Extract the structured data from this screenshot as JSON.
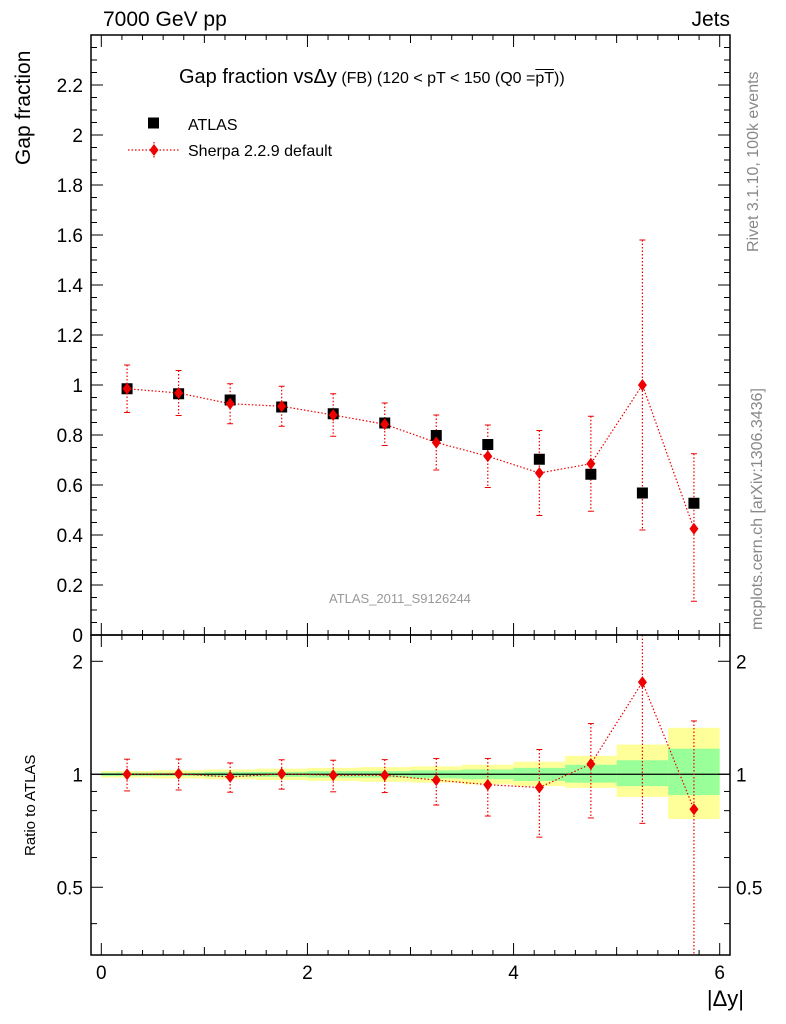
{
  "header": {
    "left": "7000 GeV pp",
    "right": "Jets"
  },
  "side_labels": {
    "rivet": "Rivet 3.1.10,  100k events",
    "mcplots": "mcplots.cern.ch [arXiv:1306.3436]"
  },
  "watermark": "ATLAS_2011_S9126244",
  "colors": {
    "data": "#000000",
    "mc": "#ee0000",
    "band_inner": "#99ff99",
    "band_outer": "#ffff99",
    "watermark": "#999999"
  },
  "chart_data": [
    {
      "type": "scatter",
      "title_main": "Gap fraction vs",
      "title_delta": "Δy",
      "title_rest": " (FB) (120 < pT < 150 (Q0 =",
      "title_over": "pT",
      "title_end": "))",
      "ylabel": "Gap fraction",
      "xlim": [
        -0.1,
        6.1
      ],
      "ylim": [
        0,
        2.4
      ],
      "yticks": [
        0,
        0.2,
        0.4,
        0.6,
        0.8,
        1,
        1.2,
        1.4,
        1.6,
        1.8,
        2,
        2.2
      ],
      "ytick_labels": [
        "0",
        "0.2",
        "0.4",
        "0.6",
        "0.8",
        "1",
        "1.2",
        "1.4",
        "1.6",
        "1.8",
        "2",
        "2.2"
      ],
      "legend_position": "top-left",
      "x": [
        0.25,
        0.75,
        1.25,
        1.75,
        2.25,
        2.75,
        3.25,
        3.75,
        4.25,
        4.75,
        5.25,
        5.75
      ],
      "x_bin_halfwidth": 0.25,
      "series": [
        {
          "name": "ATLAS",
          "marker": "square",
          "values": [
            0.985,
            0.965,
            0.94,
            0.912,
            0.885,
            0.848,
            0.798,
            0.762,
            0.703,
            0.643,
            0.568,
            0.527
          ]
        },
        {
          "name": "Sherpa 2.2.9 default",
          "marker": "diamond",
          "line": "dotted",
          "values": [
            0.985,
            0.968,
            0.925,
            0.915,
            0.88,
            0.843,
            0.77,
            0.715,
            0.648,
            0.685,
            1.0,
            0.425
          ],
          "err_up": [
            0.095,
            0.09,
            0.08,
            0.08,
            0.085,
            0.085,
            0.11,
            0.125,
            0.17,
            0.19,
            0.58,
            0.3
          ],
          "err_down": [
            0.095,
            0.09,
            0.08,
            0.08,
            0.085,
            0.085,
            0.11,
            0.125,
            0.17,
            0.19,
            0.58,
            0.29
          ]
        }
      ]
    },
    {
      "type": "scatter",
      "ylabel": "Ratio to ATLAS",
      "xlabel": "|Δy|",
      "xlim": [
        -0.1,
        6.1
      ],
      "ylim": [
        0.33,
        2.35
      ],
      "ylog": true,
      "yticks": [
        0.5,
        1,
        2
      ],
      "ytick_labels": [
        "0.5",
        "1",
        "2"
      ],
      "xticks": [
        0,
        2,
        4,
        6
      ],
      "xtick_labels": [
        "0",
        "2",
        "4",
        "6"
      ],
      "x": [
        0.25,
        0.75,
        1.25,
        1.75,
        2.25,
        2.75,
        3.25,
        3.75,
        4.25,
        4.75,
        5.25,
        5.75
      ],
      "bands": {
        "inner": [
          [
            0.99,
            1.01
          ],
          [
            0.99,
            1.01
          ],
          [
            0.985,
            1.015
          ],
          [
            0.985,
            1.015
          ],
          [
            0.98,
            1.02
          ],
          [
            0.98,
            1.02
          ],
          [
            0.975,
            1.025
          ],
          [
            0.97,
            1.03
          ],
          [
            0.96,
            1.04
          ],
          [
            0.95,
            1.06
          ],
          [
            0.93,
            1.09
          ],
          [
            0.88,
            1.17
          ]
        ],
        "outer": [
          [
            0.98,
            1.02
          ],
          [
            0.975,
            1.025
          ],
          [
            0.97,
            1.03
          ],
          [
            0.965,
            1.035
          ],
          [
            0.96,
            1.04
          ],
          [
            0.955,
            1.045
          ],
          [
            0.95,
            1.05
          ],
          [
            0.94,
            1.06
          ],
          [
            0.93,
            1.08
          ],
          [
            0.92,
            1.12
          ],
          [
            0.87,
            1.2
          ],
          [
            0.76,
            1.33
          ]
        ]
      },
      "series": [
        {
          "name": "Sherpa 2.2.9 default",
          "marker": "diamond",
          "line": "dotted",
          "values": [
            1.0,
            1.003,
            0.984,
            1.003,
            0.994,
            0.994,
            0.965,
            0.938,
            0.922,
            1.065,
            1.76,
            0.807
          ],
          "err_up": [
            0.097,
            0.095,
            0.088,
            0.09,
            0.096,
            0.1,
            0.137,
            0.164,
            0.242,
            0.3,
            1.02,
            0.58
          ],
          "err_down": [
            0.097,
            0.095,
            0.088,
            0.09,
            0.096,
            0.1,
            0.137,
            0.164,
            0.242,
            0.3,
            1.02,
            0.5
          ]
        }
      ]
    }
  ]
}
